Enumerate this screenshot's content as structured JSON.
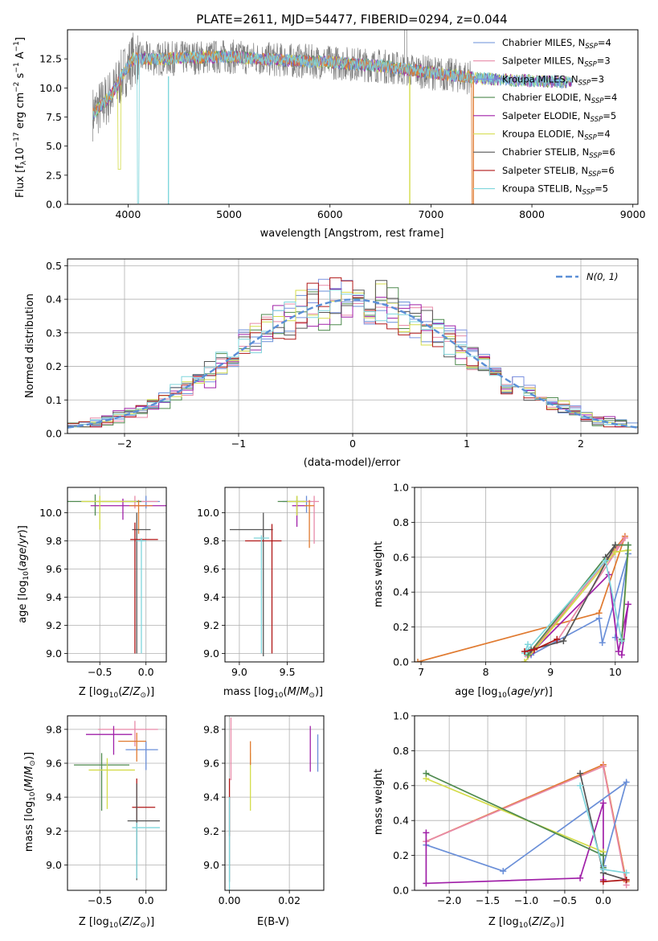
{
  "figure_title": "PLATE=2611, MJD=54477, FIBERID=0294, z=0.044",
  "colors": {
    "Chabrier MILES": "#6a8fd8",
    "Salpeter MILES": "#e88aa8",
    "Kroupa MILES": "#7b92e0",
    "Chabrier ELODIE": "#4f8a4f",
    "Salpeter ELODIE": "#a020a8",
    "Kroupa ELODIE": "#d4dc4a",
    "Chabrier STELIB": "#555555",
    "Salpeter STELIB": "#b01818",
    "Kroupa STELIB": "#7fd6dc",
    "normal": "#5b8fd6",
    "orange": "#e07a30"
  },
  "chart_data": [
    {
      "id": "spectrum",
      "type": "line",
      "title": "PLATE=2611, MJD=54477, FIBERID=0294, z=0.044",
      "xlabel": "wavelength [Angstrom, rest frame]",
      "ylabel": "Flux [f_λ 10^-17 erg cm^-2 s^-1 A^-1]",
      "xlim": [
        3400,
        9050
      ],
      "ylim": [
        0,
        15
      ],
      "xticks": [
        "4000",
        "5000",
        "6000",
        "7000",
        "8000",
        "9000"
      ],
      "yticks": [
        "0.0",
        "2.5",
        "5.0",
        "7.5",
        "10.0",
        "12.5"
      ],
      "legend_position": "top-right",
      "legend": [
        {
          "label": "Chabrier MILES, N",
          "sub": "SSP",
          "eq": "=4"
        },
        {
          "label": "Salpeter MILES, N",
          "sub": "SSP",
          "eq": "=3"
        },
        {
          "label": "Kroupa MILES, N",
          "sub": "SSP",
          "eq": "=3"
        },
        {
          "label": "Chabrier ELODIE, N",
          "sub": "SSP",
          "eq": "=4"
        },
        {
          "label": "Salpeter ELODIE, N",
          "sub": "SSP",
          "eq": "=5"
        },
        {
          "label": "Kroupa ELODIE, N",
          "sub": "SSP",
          "eq": "=4"
        },
        {
          "label": "Chabrier STELIB, N",
          "sub": "SSP",
          "eq": "=6"
        },
        {
          "label": "Salpeter STELIB, N",
          "sub": "SSP",
          "eq": "=6"
        },
        {
          "label": "Kroupa STELIB, N",
          "sub": "SSP",
          "eq": "=5"
        }
      ],
      "continuum": [
        [
          3650,
          7.8
        ],
        [
          3750,
          8.6
        ],
        [
          3850,
          9.6
        ],
        [
          3950,
          11.2
        ],
        [
          4050,
          12.5
        ],
        [
          4300,
          12.5
        ],
        [
          4600,
          12.6
        ],
        [
          5000,
          12.7
        ],
        [
          5500,
          12.4
        ],
        [
          6000,
          12.2
        ],
        [
          6500,
          11.9
        ],
        [
          7000,
          11.3
        ],
        [
          7500,
          10.8
        ],
        [
          8000,
          10.6
        ],
        [
          8400,
          10.5
        ]
      ],
      "data_range": [
        3650,
        7400
      ],
      "model_range_miles": [
        3650,
        7400
      ],
      "model_range_other": [
        3650,
        8400
      ]
    },
    {
      "id": "residuals",
      "type": "bar",
      "xlabel": "(data-model)/error",
      "ylabel": "Normed distribution",
      "xlim": [
        -2.5,
        2.5
      ],
      "ylim": [
        0,
        0.52
      ],
      "xticks": [
        "−2",
        "−1",
        "0",
        "1",
        "2"
      ],
      "yticks": [
        "0.0",
        "0.1",
        "0.2",
        "0.3",
        "0.4",
        "0.5"
      ],
      "legend_position": "top-right",
      "legend_label": "N(0, 1)",
      "bin_width": 0.1
    },
    {
      "id": "age_vs_Z",
      "type": "scatter",
      "xlabel": "Z [log10(Z/Z⊙)]",
      "ylabel": "age [log10(age/yr)]",
      "xlim": [
        -0.85,
        0.22
      ],
      "ylim": [
        8.94,
        10.18
      ],
      "xticks": [
        "−0.5",
        "0.0"
      ],
      "yticks": [
        "9.0",
        "9.2",
        "9.4",
        "9.6",
        "9.8",
        "10.0"
      ],
      "points": [
        {
          "name": "Chabrier MILES",
          "x": 0.0,
          "xerr": [
            0.25,
            0.15
          ],
          "y": 10.08,
          "yerr": [
            0.05,
            0.04
          ]
        },
        {
          "name": "Salpeter MILES",
          "x": -0.12,
          "xerr": [
            0.4,
            0.25
          ],
          "y": 10.08,
          "yerr": [
            0.05,
            0.04
          ]
        },
        {
          "name": "Chabrier ELODIE",
          "x": -0.55,
          "xerr": [
            0.3,
            0.5
          ],
          "y": 10.08,
          "yerr": [
            0.1,
            0.05
          ]
        },
        {
          "name": "Salpeter ELODIE",
          "x": -0.25,
          "xerr": [
            0.35,
            0.5
          ],
          "y": 10.05,
          "yerr": [
            0.1,
            0.05
          ]
        },
        {
          "name": "Kroupa ELODIE",
          "x": -0.5,
          "xerr": [
            0.2,
            0.4
          ],
          "y": 10.08,
          "yerr": [
            0.2,
            0.04
          ]
        },
        {
          "name": "orange",
          "x": -0.08,
          "xerr": [
            0.1,
            0.15
          ],
          "y": 10.05,
          "yerr": [
            0.2,
            0.04
          ]
        },
        {
          "name": "Chabrier STELIB",
          "x": -0.1,
          "xerr": [
            0.05,
            0.15
          ],
          "y": 9.88,
          "yerr": [
            0.88,
            0.12
          ]
        },
        {
          "name": "Salpeter STELIB",
          "x": -0.12,
          "xerr": [
            0.05,
            0.25
          ],
          "y": 9.81,
          "yerr": [
            0.81,
            0.12
          ]
        },
        {
          "name": "Kroupa STELIB",
          "x": -0.05,
          "xerr": [
            0.05,
            0.05
          ],
          "y": 9.8,
          "yerr": [
            0.8,
            0.02
          ]
        }
      ]
    },
    {
      "id": "age_vs_mass",
      "type": "scatter",
      "xlabel": "mass [log10(M/M⊙)]",
      "ylabel": "",
      "xlim": [
        8.85,
        9.88
      ],
      "ylim": [
        8.94,
        10.18
      ],
      "xticks": [
        "9.0",
        "9.5"
      ],
      "yticks": [
        "9.0",
        "9.2",
        "9.4",
        "9.6",
        "9.8",
        "10.0"
      ],
      "points": [
        {
          "name": "Chabrier MILES",
          "x": 9.7,
          "xerr": [
            0.25,
            0.05
          ],
          "y": 10.08,
          "yerr": [
            0.08,
            0.04
          ]
        },
        {
          "name": "Salpeter MILES",
          "x": 9.78,
          "xerr": [
            0.12,
            0.05
          ],
          "y": 10.08,
          "yerr": [
            0.3,
            0.04
          ]
        },
        {
          "name": "Chabrier ELODIE",
          "x": 9.6,
          "xerr": [
            0.2,
            0.08
          ],
          "y": 10.08,
          "yerr": [
            0.1,
            0.04
          ]
        },
        {
          "name": "Salpeter ELODIE",
          "x": 9.6,
          "xerr": [
            0.05,
            0.1
          ],
          "y": 10.05,
          "yerr": [
            0.15,
            0.04
          ]
        },
        {
          "name": "Kroupa ELODIE",
          "x": 9.6,
          "xerr": [
            0.1,
            0.1
          ],
          "y": 10.08,
          "yerr": [
            0.1,
            0.04
          ]
        },
        {
          "name": "orange",
          "x": 9.73,
          "xerr": [
            0.05,
            0.05
          ],
          "y": 10.05,
          "yerr": [
            0.3,
            0.04
          ]
        },
        {
          "name": "Chabrier STELIB",
          "x": 9.25,
          "xerr": [
            0.35,
            0.1
          ],
          "y": 9.88,
          "yerr": [
            0.9,
            0.12
          ]
        },
        {
          "name": "Salpeter STELIB",
          "x": 9.34,
          "xerr": [
            0.28,
            0.1
          ],
          "y": 9.8,
          "yerr": [
            0.8,
            0.12
          ]
        },
        {
          "name": "Kroupa STELIB",
          "x": 9.23,
          "xerr": [
            0.08,
            0.08
          ],
          "y": 9.82,
          "yerr": [
            0.82,
            0.02
          ]
        }
      ]
    },
    {
      "id": "mass_vs_Z",
      "type": "scatter",
      "xlabel": "Z [log10(Z/Z⊙)]",
      "ylabel": "mass [log10(M/M⊙)]",
      "xlim": [
        -0.85,
        0.22
      ],
      "ylim": [
        8.85,
        9.88
      ],
      "xticks": [
        "−0.5",
        "0.0"
      ],
      "yticks": [
        "9.0",
        "9.2",
        "9.4",
        "9.6",
        "9.8"
      ],
      "points": [
        {
          "name": "Chabrier MILES",
          "x": 0.0,
          "xerr": [
            0.22,
            0.13
          ],
          "y": 9.68,
          "yerr": [
            0.12,
            0.05
          ]
        },
        {
          "name": "Salpeter MILES",
          "x": -0.12,
          "xerr": [
            0.4,
            0.25
          ],
          "y": 9.8,
          "yerr": [
            0.1,
            0.05
          ]
        },
        {
          "name": "orange",
          "x": -0.1,
          "xerr": [
            0.2,
            0.1
          ],
          "y": 9.73,
          "yerr": [
            0.12,
            0.05
          ]
        },
        {
          "name": "Salpeter ELODIE",
          "x": -0.35,
          "xerr": [
            0.3,
            0.2
          ],
          "y": 9.77,
          "yerr": [
            0.12,
            0.05
          ]
        },
        {
          "name": "Chabrier ELODIE",
          "x": -0.48,
          "xerr": [
            0.3,
            0.3
          ],
          "y": 9.59,
          "yerr": [
            0.27,
            0.07
          ]
        },
        {
          "name": "Kroupa ELODIE",
          "x": -0.42,
          "xerr": [
            0.2,
            0.3
          ],
          "y": 9.56,
          "yerr": [
            0.23,
            0.07
          ]
        },
        {
          "name": "Salpeter STELIB",
          "x": -0.1,
          "xerr": [
            0.05,
            0.2
          ],
          "y": 9.34,
          "yerr": [
            0.28,
            0.17
          ]
        },
        {
          "name": "Chabrier STELIB",
          "x": -0.1,
          "xerr": [
            0.1,
            0.25
          ],
          "y": 9.26,
          "yerr": [
            0.35,
            0.22
          ]
        },
        {
          "name": "Kroupa STELIB",
          "x": -0.1,
          "xerr": [
            0.05,
            0.25
          ],
          "y": 9.22,
          "yerr": [
            0.3,
            0.03
          ]
        }
      ]
    },
    {
      "id": "mass_vs_EBV",
      "type": "scatter",
      "xlabel": "E(B-V)",
      "ylabel": "",
      "xlim": [
        -0.0015,
        0.0315
      ],
      "ylim": [
        8.85,
        9.88
      ],
      "xticks": [
        "0.00",
        "0.02"
      ],
      "yticks": [
        "9.0",
        "9.2",
        "9.4",
        "9.6",
        "9.8"
      ],
      "points": [
        {
          "name": "Salpeter ELODIE",
          "x": 0.027,
          "y": 9.69,
          "yerr": [
            0.14,
            0.13
          ]
        },
        {
          "name": "Chabrier MILES",
          "x": 0.0295,
          "y": 9.66,
          "yerr": [
            0.11,
            0.11
          ]
        },
        {
          "name": "Kroupa ELODIE",
          "x": 0.007,
          "y": 9.52,
          "yerr": [
            0.2,
            0.14
          ]
        },
        {
          "name": "orange",
          "x": 0.007,
          "y": 9.64,
          "yerr": [
            0.05,
            0.09
          ]
        },
        {
          "name": "Salpeter MILES",
          "x": 0.0005,
          "y": 9.7,
          "yerr": [
            0.2,
            0.17
          ]
        },
        {
          "name": "Salpeter STELIB",
          "x": 0.0,
          "y": 9.35,
          "yerr": [
            0.18,
            0.16
          ]
        },
        {
          "name": "Chabrier STELIB",
          "x": 0.0,
          "y": 9.2,
          "yerr": [
            0.3,
            0.2
          ]
        },
        {
          "name": "Kroupa STELIB",
          "x": 0.0,
          "y": 9.15,
          "yerr": [
            0.3,
            0.25
          ]
        }
      ]
    },
    {
      "id": "weight_vs_age",
      "type": "line",
      "xlabel": "age [log10(age/yr)]",
      "ylabel": "mass weight",
      "xlim": [
        6.9,
        10.35
      ],
      "ylim": [
        0,
        1
      ],
      "xticks": [
        "7",
        "8",
        "9",
        "10"
      ],
      "yticks": [
        "0.0",
        "0.2",
        "0.4",
        "0.6",
        "0.8",
        "1.0"
      ],
      "series": [
        {
          "name": "orange",
          "points": [
            [
              6.95,
              0.0
            ],
            [
              9.75,
              0.28
            ],
            [
              10.15,
              0.72
            ],
            [
              8.7,
              0.05
            ]
          ]
        },
        {
          "name": "Salpeter MILES",
          "points": [
            [
              8.65,
              0.03
            ],
            [
              9.1,
              0.12
            ],
            [
              10.15,
              0.71
            ],
            [
              8.7,
              0.06
            ]
          ]
        },
        {
          "name": "Chabrier MILES",
          "points": [
            [
              8.7,
              0.04
            ],
            [
              9.75,
              0.25
            ],
            [
              9.8,
              0.11
            ],
            [
              10.2,
              0.62
            ],
            [
              10.0,
              0.14
            ]
          ]
        },
        {
          "name": "Salpeter ELODIE",
          "points": [
            [
              8.7,
              0.05
            ],
            [
              9.9,
              0.5
            ],
            [
              10.05,
              0.06
            ],
            [
              10.2,
              0.33
            ],
            [
              10.1,
              0.04
            ]
          ]
        },
        {
          "name": "Kroupa ELODIE",
          "points": [
            [
              8.6,
              0.0
            ],
            [
              10.0,
              0.63
            ],
            [
              10.2,
              0.64
            ],
            [
              10.1,
              0.12
            ]
          ]
        },
        {
          "name": "Chabrier ELODIE",
          "points": [
            [
              8.65,
              0.04
            ],
            [
              10.0,
              0.67
            ],
            [
              10.2,
              0.67
            ],
            [
              10.1,
              0.13
            ]
          ]
        },
        {
          "name": "Chabrier STELIB",
          "points": [
            [
              8.7,
              0.07
            ],
            [
              9.2,
              0.12
            ],
            [
              10.0,
              0.67
            ],
            [
              9.85,
              0.6
            ]
          ]
        },
        {
          "name": "Kroupa STELIB",
          "points": [
            [
              8.65,
              0.1
            ],
            [
              8.6,
              0.05
            ],
            [
              9.85,
              0.58
            ],
            [
              10.1,
              0.12
            ]
          ]
        },
        {
          "name": "Salpeter STELIB",
          "points": [
            [
              8.6,
              0.06
            ],
            [
              8.75,
              0.07
            ],
            [
              9.1,
              0.13
            ]
          ]
        }
      ]
    },
    {
      "id": "weight_vs_Z",
      "type": "line",
      "xlabel": "Z [log10(Z/Z⊙)]",
      "ylabel": "mass weight",
      "xlim": [
        -2.45,
        0.45
      ],
      "ylim": [
        0,
        1
      ],
      "xticks": [
        "−2.0",
        "−1.5",
        "−1.0",
        "−0.5",
        "0.0"
      ],
      "yticks": [
        "0.0",
        "0.2",
        "0.4",
        "0.6",
        "0.8",
        "1.0"
      ],
      "series": [
        {
          "name": "orange",
          "points": [
            [
              -2.3,
              0.28
            ],
            [
              0.0,
              0.72
            ],
            [
              0.3,
              0.05
            ]
          ]
        },
        {
          "name": "Salpeter MILES",
          "points": [
            [
              -2.3,
              0.28
            ],
            [
              0.0,
              0.71
            ],
            [
              0.3,
              0.03
            ]
          ]
        },
        {
          "name": "Chabrier MILES",
          "points": [
            [
              -2.3,
              0.26
            ],
            [
              -1.3,
              0.11
            ],
            [
              0.3,
              0.62
            ],
            [
              0.0,
              0.14
            ]
          ]
        },
        {
          "name": "Salpeter ELODIE",
          "points": [
            [
              -2.3,
              0.33
            ],
            [
              -2.3,
              0.04
            ],
            [
              -0.3,
              0.07
            ],
            [
              0.0,
              0.5
            ],
            [
              0.0,
              0.06
            ]
          ]
        },
        {
          "name": "Kroupa ELODIE",
          "points": [
            [
              -2.3,
              0.64
            ],
            [
              0.0,
              0.22
            ]
          ]
        },
        {
          "name": "Chabrier ELODIE",
          "points": [
            [
              -2.3,
              0.67
            ],
            [
              0.0,
              0.2
            ],
            [
              0.0,
              0.13
            ]
          ]
        },
        {
          "name": "Chabrier STELIB",
          "points": [
            [
              -0.3,
              0.67
            ],
            [
              0.0,
              0.1
            ],
            [
              0.3,
              0.06
            ]
          ]
        },
        {
          "name": "Kroupa STELIB",
          "points": [
            [
              -0.3,
              0.6
            ],
            [
              0.0,
              0.12
            ],
            [
              0.3,
              0.1
            ]
          ]
        },
        {
          "name": "Salpeter STELIB",
          "points": [
            [
              0.3,
              0.06
            ],
            [
              0.0,
              0.05
            ]
          ]
        }
      ]
    }
  ]
}
